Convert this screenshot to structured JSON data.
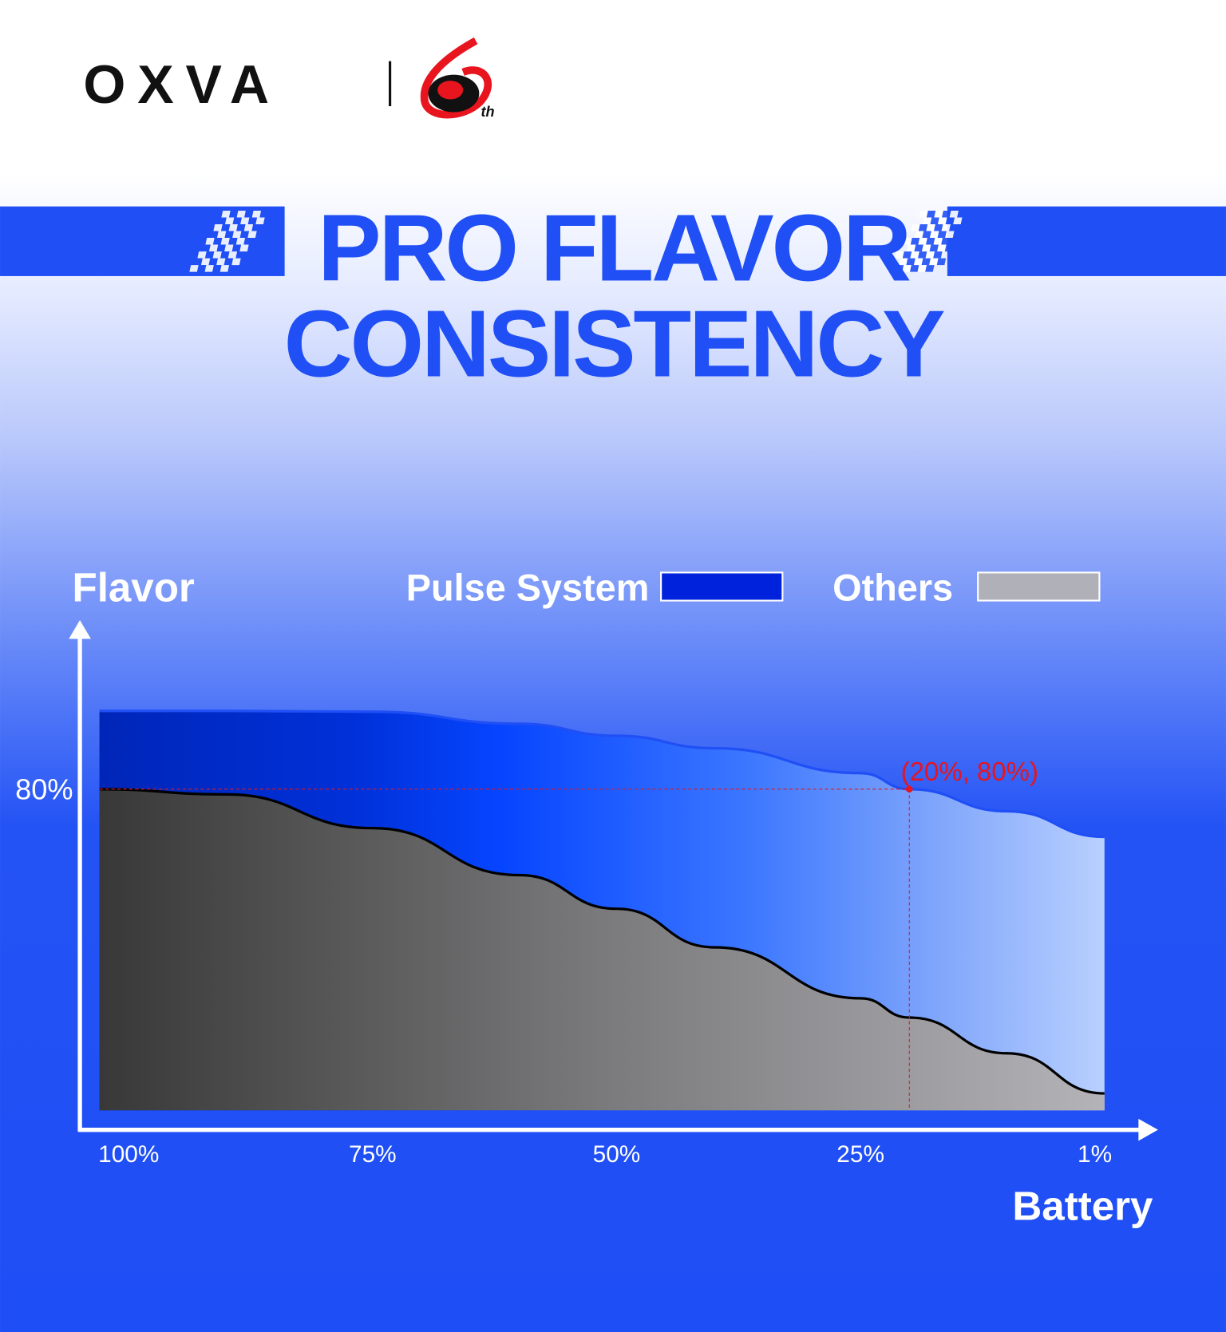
{
  "header": {
    "brand": "OXVA",
    "badge": "th",
    "title_lines": [
      "PRO FLAVOR",
      "CONSISTENCY"
    ]
  },
  "chart_data": {
    "type": "area",
    "x_label": "Battery",
    "y_label": "Flavor",
    "x": [
      103,
      90,
      75,
      60,
      50,
      40,
      25,
      20,
      10,
      0
    ],
    "series": [
      {
        "name": "Pulse System",
        "color": "#0022dd",
        "values": [
          99.5,
          99.5,
          99.3,
          96.3,
          93.3,
          90.2,
          84.0,
          80,
          74.5,
          68.1
        ]
      },
      {
        "name": "Others",
        "color": "#b0b0b8",
        "values": [
          80,
          78.7,
          70.3,
          58.6,
          50.2,
          40.6,
          27.9,
          23.1,
          14.2,
          4.2
        ]
      }
    ],
    "xlim": [
      103,
      0
    ],
    "ylim": [
      0,
      120
    ],
    "xticks": [
      {
        "value": 100,
        "label": "100%"
      },
      {
        "value": 75,
        "label": "75%"
      },
      {
        "value": 50,
        "label": "50%"
      },
      {
        "value": 25,
        "label": "25%"
      },
      {
        "value": 1,
        "label": "1%"
      }
    ],
    "yticks": [
      {
        "value": 80,
        "label": "80%"
      }
    ],
    "grid": false,
    "annotation": {
      "text": "(20%, 80%)",
      "x": 20,
      "y": 80,
      "color": "#e8141e"
    }
  }
}
